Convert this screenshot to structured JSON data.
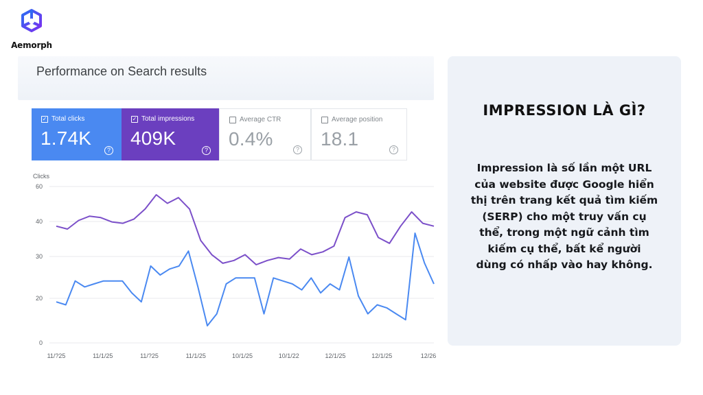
{
  "brand": {
    "name": "Aemorph"
  },
  "panel": {
    "title": "Performance on Search results"
  },
  "metrics": [
    {
      "label": "Total clicks",
      "value": "1.74K",
      "checked": true,
      "color": "#4a89f1"
    },
    {
      "label": "Total impressions",
      "value": "409K",
      "checked": true,
      "color": "#6b3fbf"
    },
    {
      "label": "Average CTR",
      "value": "0.4%",
      "checked": false
    },
    {
      "label": "Average position",
      "value": "18.1",
      "checked": false
    }
  ],
  "chart_data": {
    "type": "line",
    "ylabel": "Clicks",
    "ytick_labels": [
      "60",
      "40",
      "30",
      "20",
      "0"
    ],
    "xtick_labels": [
      "11/?25",
      "11/1/25",
      "11/?25",
      "11/1/25",
      "10/1/25",
      "10/1/22",
      "12/1/25",
      "12/1/25",
      "12/26"
    ],
    "series": [
      {
        "name": "Total impressions",
        "color": "#7b4fc9",
        "values": [
          40,
          39,
          42,
          43.5,
          43,
          41.5,
          41,
          42.5,
          46,
          51,
          48,
          50,
          46,
          35,
          30,
          27,
          28,
          30,
          26.5,
          28,
          29,
          28.5,
          32,
          30,
          31,
          33,
          43,
          45,
          44,
          36,
          34,
          40,
          45,
          41,
          40
        ]
      },
      {
        "name": "Total clicks",
        "color": "#4a89f1",
        "values": [
          12,
          11,
          19,
          17,
          18,
          19,
          19,
          19,
          15,
          12,
          24,
          21,
          23,
          24,
          29,
          17,
          4,
          8,
          18,
          20,
          20,
          20,
          8,
          20,
          19,
          18,
          16,
          20,
          15,
          18,
          16,
          27,
          14,
          8,
          11,
          10,
          8,
          6,
          35,
          25,
          18
        ]
      }
    ]
  },
  "info": {
    "title": "IMPRESSION LÀ GÌ?",
    "lines": [
      "Impression là số lần một URL",
      "của website được Google hiển",
      "thị trên trang kết quả tìm kiếm",
      "(SERP) cho một truy vấn cụ",
      "thể, trong một ngữ cảnh tìm",
      "kiếm cụ thể, bất kể người",
      "dùng có nhấp vào hay không."
    ]
  }
}
